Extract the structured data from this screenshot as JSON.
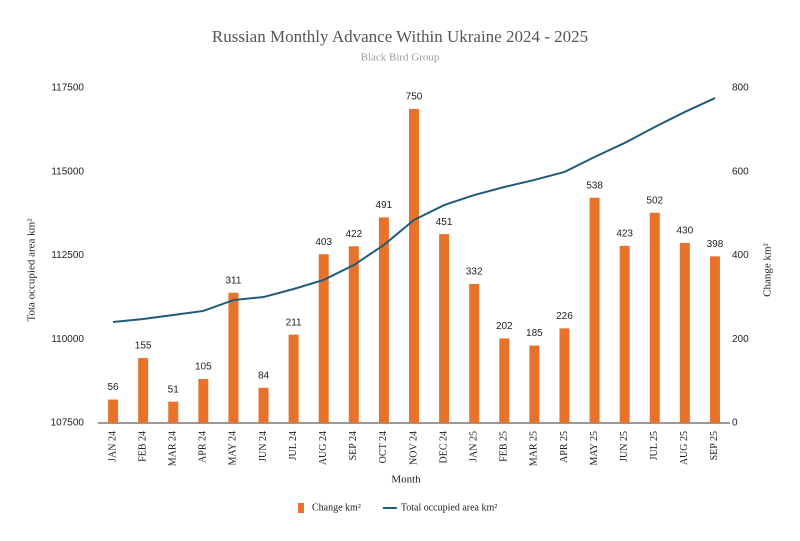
{
  "chart_data": {
    "type": "bar_line",
    "title": "Russian Monthly Advance Within Ukraine 2024 - 2025",
    "subtitle": "Black Bird Group",
    "x_label": "Month",
    "y_label": "Tota occupied area km²",
    "y2_label": "Change km²",
    "categories": [
      "JAN 24",
      "FEB 24",
      "MAR 24",
      "APR 24",
      "MAY 24",
      "JUN 24",
      "JUL 24",
      "AUG 24",
      "SEP 24",
      "OCT 24",
      "NOV 24",
      "DEC 24",
      "JAN 25",
      "FEB 25",
      "MAR 25",
      "APR 25",
      "MAY 25",
      "JUN 25",
      "JUL 25",
      "AUG 25",
      "SEP 25"
    ],
    "series": [
      {
        "name": "Change km²",
        "color": "#e8722a",
        "type": "bar",
        "axis": "y2",
        "values": [
          56,
          155,
          51,
          105,
          311,
          84,
          211,
          403,
          422,
          491,
          750,
          451,
          332,
          202,
          185,
          226,
          538,
          423,
          502,
          430,
          398
        ]
      },
      {
        "name": "Total occupied area km²",
        "color": "#1f5c7a",
        "type": "line",
        "values": [
          110515,
          110605,
          110725,
          110845,
          111170,
          111260,
          111500,
          111770,
          112215,
          112815,
          113560,
          114005,
          114305,
          114545,
          114755,
          114995,
          115440,
          115860,
          116335,
          116785,
          117200
        ]
      }
    ],
    "ylim": [
      107500,
      117500
    ],
    "yticks": [
      107500,
      110000,
      112500,
      115000,
      117500
    ],
    "y2lim": [
      0,
      800
    ],
    "y2ticks": [
      0,
      200,
      400,
      600,
      800
    ],
    "grid": false,
    "legend": "bottom"
  }
}
